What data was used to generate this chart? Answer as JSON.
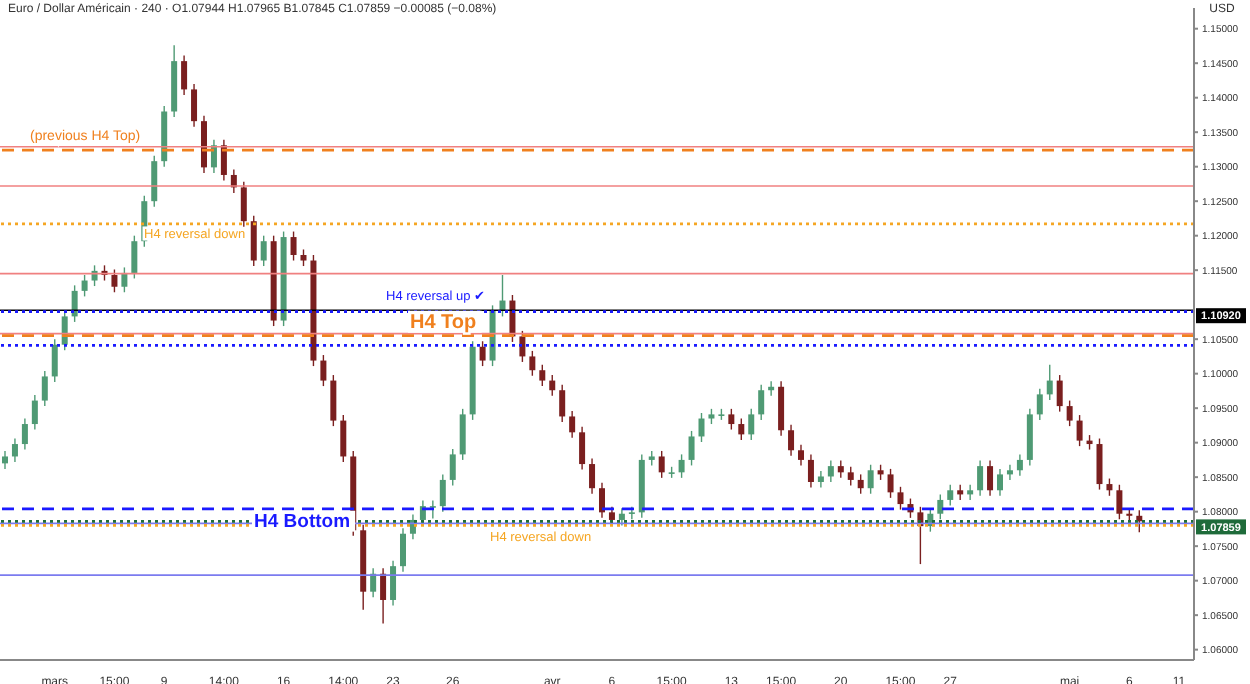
{
  "chart_data": {
    "type": "candlestick",
    "title": "Euro / Dollar Américain · 240 · O1.07944 H1.07965 B1.07845 C1.07859 −0.00085 (−0.08%)",
    "ylabel": "USD",
    "categories": [
      null,
      null,
      null,
      null,
      null,
      "mars",
      null,
      null,
      null,
      null,
      null,
      "15:00",
      null,
      null,
      null,
      null,
      "9",
      null,
      null,
      null,
      null,
      null,
      "14:00",
      null,
      null,
      null,
      null,
      null,
      "16",
      null,
      null,
      null,
      null,
      null,
      "14:00",
      null,
      null,
      null,
      null,
      "23",
      null,
      null,
      null,
      null,
      null,
      "26",
      null,
      null,
      null,
      null,
      null,
      null,
      null,
      null,
      null,
      "avr",
      null,
      null,
      null,
      null,
      null,
      "6",
      null,
      null,
      null,
      null,
      null,
      "15:00",
      null,
      null,
      null,
      null,
      null,
      "13",
      null,
      null,
      null,
      null,
      "15:00",
      null,
      null,
      null,
      null,
      null,
      "20",
      null,
      null,
      null,
      null,
      null,
      "15:00",
      null,
      null,
      null,
      null,
      "27",
      null,
      null,
      null,
      null,
      null,
      null,
      null,
      null,
      null,
      null,
      null,
      "mai",
      null,
      null,
      null,
      null,
      null,
      "6",
      null,
      null,
      null,
      null,
      "11",
      null
    ],
    "ohlc": [
      [
        1.087,
        1.0888,
        1.0862,
        1.088
      ],
      [
        1.088,
        1.0906,
        1.0872,
        1.0898
      ],
      [
        1.0898,
        1.0935,
        1.089,
        1.0927
      ],
      [
        1.0927,
        1.0969,
        1.0919,
        1.0961
      ],
      [
        1.0961,
        1.1004,
        1.0953,
        1.0996
      ],
      [
        1.0996,
        1.105,
        1.0988,
        1.1042
      ],
      [
        1.1042,
        1.1091,
        1.1034,
        1.1083
      ],
      [
        1.1083,
        1.1128,
        1.1075,
        1.112
      ],
      [
        1.112,
        1.1143,
        1.1112,
        1.1135
      ],
      [
        1.1135,
        1.1157,
        1.1127,
        1.1149
      ],
      [
        1.1149,
        1.1157,
        1.1135,
        1.1143
      ],
      [
        1.1143,
        1.1151,
        1.1118,
        1.1126
      ],
      [
        1.1126,
        1.1154,
        1.1118,
        1.1146
      ],
      [
        1.1146,
        1.12,
        1.1138,
        1.1192
      ],
      [
        1.1192,
        1.1258,
        1.1184,
        1.125
      ],
      [
        1.125,
        1.1316,
        1.1242,
        1.1308
      ],
      [
        1.1308,
        1.1388,
        1.13,
        1.138
      ],
      [
        1.138,
        1.1476,
        1.1372,
        1.1453
      ],
      [
        1.1453,
        1.1461,
        1.1404,
        1.1412
      ],
      [
        1.1412,
        1.142,
        1.1358,
        1.1366
      ],
      [
        1.1366,
        1.1374,
        1.1291,
        1.1299
      ],
      [
        1.1299,
        1.1339,
        1.1291,
        1.1331
      ],
      [
        1.1331,
        1.1339,
        1.128,
        1.1288
      ],
      [
        1.1288,
        1.1296,
        1.1262,
        1.127
      ],
      [
        1.127,
        1.1278,
        1.1213,
        1.1221
      ],
      [
        1.1221,
        1.1229,
        1.1156,
        1.1164
      ],
      [
        1.1164,
        1.12,
        1.1156,
        1.1192
      ],
      [
        1.1192,
        1.12,
        1.1069,
        1.1077
      ],
      [
        1.1077,
        1.1206,
        1.1069,
        1.1198
      ],
      [
        1.1198,
        1.1206,
        1.1164,
        1.1172
      ],
      [
        1.1172,
        1.118,
        1.1156,
        1.1164
      ],
      [
        1.1164,
        1.1172,
        1.1011,
        1.1019
      ],
      [
        1.1019,
        1.1027,
        1.0982,
        1.099
      ],
      [
        1.099,
        1.0998,
        1.0924,
        1.0932
      ],
      [
        1.0932,
        1.094,
        1.0872,
        1.088
      ],
      [
        1.088,
        1.0888,
        1.0765,
        1.0773
      ],
      [
        1.0773,
        1.0781,
        1.0658,
        1.0684
      ],
      [
        1.0684,
        1.0718,
        1.0676,
        1.071
      ],
      [
        1.071,
        1.0718,
        1.0638,
        1.0672
      ],
      [
        1.0672,
        1.0729,
        1.0664,
        1.0721
      ],
      [
        1.0721,
        1.0776,
        1.0713,
        1.0768
      ],
      [
        1.0768,
        1.0796,
        1.076,
        1.0788
      ],
      [
        1.0788,
        1.0816,
        1.078,
        1.0808
      ],
      [
        1.0808,
        1.0816,
        1.079,
        1.0808
      ],
      [
        1.0808,
        1.0854,
        1.08,
        1.0846
      ],
      [
        1.0846,
        1.0891,
        1.0838,
        1.0883
      ],
      [
        1.0883,
        1.0949,
        1.0875,
        1.0941
      ],
      [
        1.0941,
        1.1047,
        1.0933,
        1.1039
      ],
      [
        1.1039,
        1.1047,
        1.1011,
        1.1019
      ],
      [
        1.1019,
        1.1099,
        1.1011,
        1.1091
      ],
      [
        1.1091,
        1.1143,
        1.1083,
        1.1106
      ],
      [
        1.1106,
        1.1114,
        1.1046,
        1.1054
      ],
      [
        1.1054,
        1.1062,
        1.1017,
        1.1025
      ],
      [
        1.1025,
        1.1033,
        1.0997,
        1.1005
      ],
      [
        1.1005,
        1.1013,
        1.0982,
        1.099
      ],
      [
        1.099,
        1.0998,
        1.0968,
        1.0976
      ],
      [
        1.0976,
        1.0984,
        1.093,
        1.0938
      ],
      [
        1.0938,
        1.0946,
        1.0907,
        1.0915
      ],
      [
        1.0915,
        1.0923,
        1.0861,
        1.0869
      ],
      [
        1.0869,
        1.0877,
        1.0826,
        1.0834
      ],
      [
        1.0834,
        1.0842,
        1.0791,
        1.0799
      ],
      [
        1.0799,
        1.0807,
        1.078,
        1.0788
      ],
      [
        1.0788,
        1.0805,
        1.078,
        1.0797
      ],
      [
        1.0797,
        1.0807,
        1.0789,
        1.0799
      ],
      [
        1.0799,
        1.0883,
        1.0791,
        1.0875
      ],
      [
        1.0875,
        1.0888,
        1.0867,
        1.088
      ],
      [
        1.088,
        1.0888,
        1.0849,
        1.0857
      ],
      [
        1.0857,
        1.0865,
        1.0849,
        1.0857
      ],
      [
        1.0857,
        1.0883,
        1.0849,
        1.0875
      ],
      [
        1.0875,
        1.0917,
        1.0867,
        1.0909
      ],
      [
        1.0909,
        1.0943,
        1.0901,
        1.0935
      ],
      [
        1.0935,
        1.0949,
        1.0927,
        1.0941
      ],
      [
        1.0941,
        1.0949,
        1.0933,
        1.0941
      ],
      [
        1.0941,
        1.0949,
        1.0919,
        1.0927
      ],
      [
        1.0927,
        1.0935,
        1.0904,
        1.0912
      ],
      [
        1.0912,
        1.0949,
        1.0904,
        1.0941
      ],
      [
        1.0941,
        1.0984,
        1.0933,
        1.0976
      ],
      [
        1.0976,
        1.0989,
        1.0968,
        1.0981
      ],
      [
        1.0981,
        1.0989,
        1.091,
        1.0918
      ],
      [
        1.0918,
        1.0926,
        1.0881,
        1.0889
      ],
      [
        1.0889,
        1.0897,
        1.0867,
        1.0875
      ],
      [
        1.0875,
        1.0883,
        1.0835,
        1.0843
      ],
      [
        1.0843,
        1.0859,
        1.0835,
        1.0851
      ],
      [
        1.0851,
        1.0874,
        1.0843,
        1.0866
      ],
      [
        1.0866,
        1.0874,
        1.0849,
        1.0857
      ],
      [
        1.0857,
        1.0865,
        1.0838,
        1.0846
      ],
      [
        1.0846,
        1.0854,
        1.0826,
        1.0834
      ],
      [
        1.0834,
        1.0868,
        1.0826,
        1.086
      ],
      [
        1.086,
        1.0868,
        1.0846,
        1.0854
      ],
      [
        1.0854,
        1.0862,
        1.082,
        1.0828
      ],
      [
        1.0828,
        1.0836,
        1.0803,
        1.0811
      ],
      [
        1.0811,
        1.0819,
        1.0791,
        1.0799
      ],
      [
        1.0799,
        1.0807,
        1.0724,
        1.0779
      ],
      [
        1.0779,
        1.0805,
        1.0771,
        1.0797
      ],
      [
        1.0797,
        1.0825,
        1.0789,
        1.0817
      ],
      [
        1.0817,
        1.0839,
        1.0809,
        1.0831
      ],
      [
        1.0831,
        1.0839,
        1.0817,
        1.0825
      ],
      [
        1.0825,
        1.0839,
        1.0817,
        1.0831
      ],
      [
        1.0831,
        1.0874,
        1.0823,
        1.0866
      ],
      [
        1.0866,
        1.0874,
        1.0823,
        1.0831
      ],
      [
        1.0831,
        1.0862,
        1.0823,
        1.0854
      ],
      [
        1.0854,
        1.0868,
        1.0846,
        1.086
      ],
      [
        1.086,
        1.0883,
        1.0852,
        1.0875
      ],
      [
        1.0875,
        1.0949,
        1.0867,
        1.0941
      ],
      [
        1.0941,
        1.0978,
        1.0933,
        1.097
      ],
      [
        1.097,
        1.1013,
        1.0962,
        1.099
      ],
      [
        1.099,
        1.0998,
        1.0945,
        1.0953
      ],
      [
        1.0953,
        1.0961,
        1.0924,
        1.0932
      ],
      [
        1.0932,
        1.094,
        1.0895,
        1.0903
      ],
      [
        1.0903,
        1.0911,
        1.089,
        1.0898
      ],
      [
        1.0898,
        1.0906,
        1.0832,
        1.084
      ],
      [
        1.084,
        1.0848,
        1.0823,
        1.0831
      ],
      [
        1.0831,
        1.0839,
        1.0789,
        1.0797
      ],
      [
        1.0797,
        1.0805,
        1.0786,
        1.0794
      ],
      [
        1.0794,
        1.0802,
        1.077,
        1.0786
      ],
      null,
      null,
      null,
      null,
      null
    ],
    "ylim": [
      1.0585,
      1.153
    ],
    "yticks": [
      {
        "value": 1.06,
        "label": "1.06000"
      },
      {
        "value": 1.065,
        "label": "1.06500"
      },
      {
        "value": 1.07,
        "label": "1.07000"
      },
      {
        "value": 1.075,
        "label": "1.07500"
      },
      {
        "value": 1.08,
        "label": "1.08000"
      },
      {
        "value": 1.085,
        "label": "1.08500"
      },
      {
        "value": 1.09,
        "label": "1.09000"
      },
      {
        "value": 1.095,
        "label": "1.09500"
      },
      {
        "value": 1.1,
        "label": "1.10000"
      },
      {
        "value": 1.105,
        "label": "1.10500"
      },
      {
        "value": 1.115,
        "label": "1.11500"
      },
      {
        "value": 1.12,
        "label": "1.12000"
      },
      {
        "value": 1.125,
        "label": "1.12500"
      },
      {
        "value": 1.13,
        "label": "1.13000"
      },
      {
        "value": 1.135,
        "label": "1.13500"
      },
      {
        "value": 1.14,
        "label": "1.14000"
      },
      {
        "value": 1.145,
        "label": "1.14500"
      },
      {
        "value": 1.15,
        "label": "1.15000"
      }
    ],
    "ref_lines": [
      {
        "axis": "y",
        "value": 1.1329,
        "color": "#f08080",
        "line_style": "solid"
      },
      {
        "axis": "y",
        "value": 1.1324,
        "label": "(previous H4 Top)",
        "color": "#f0801e",
        "line_style": "dashed"
      },
      {
        "axis": "y",
        "value": 1.1272,
        "color": "#f08080",
        "line_style": "solid"
      },
      {
        "axis": "y",
        "value": 1.1217,
        "label": "H4 reversal down",
        "color": "#f5a623",
        "line_style": "dotted"
      },
      {
        "axis": "y",
        "value": 1.1145,
        "color": "#f08080",
        "line_style": "solid"
      },
      {
        "axis": "y",
        "value": 1.1092,
        "label": "1.10920",
        "color": "#000000",
        "line_style": "solid"
      },
      {
        "axis": "y",
        "value": 1.109,
        "label": "H4 reversal up ✔",
        "color": "#1a1aff",
        "line_style": "dotted"
      },
      {
        "axis": "y",
        "value": 1.1058,
        "color": "#f08080",
        "line_style": "solid"
      },
      {
        "axis": "y",
        "value": 1.1055,
        "label": "H4 Top",
        "color": "#f0801e",
        "line_style": "dashed"
      },
      {
        "axis": "y",
        "value": 1.1041,
        "color": "#1a1aff",
        "line_style": "dotted"
      },
      {
        "axis": "y",
        "value": 1.0804,
        "label": "H4 Bottom",
        "color": "#1a1aff",
        "line_style": "dashed"
      },
      {
        "axis": "y",
        "value": 1.0783,
        "color": "#7b7bef",
        "line_style": "solid"
      },
      {
        "axis": "y",
        "value": 1.078,
        "label": "H4 reversal down",
        "color": "#f5a623",
        "line_style": "dotted"
      },
      {
        "axis": "y",
        "value": 1.0708,
        "color": "#7b7bef",
        "line_style": "solid"
      },
      {
        "axis": "y",
        "value": 1.07859,
        "label": "1.07859",
        "color": "#1e6b3a",
        "line_style": "dotted"
      }
    ],
    "grid": false
  }
}
